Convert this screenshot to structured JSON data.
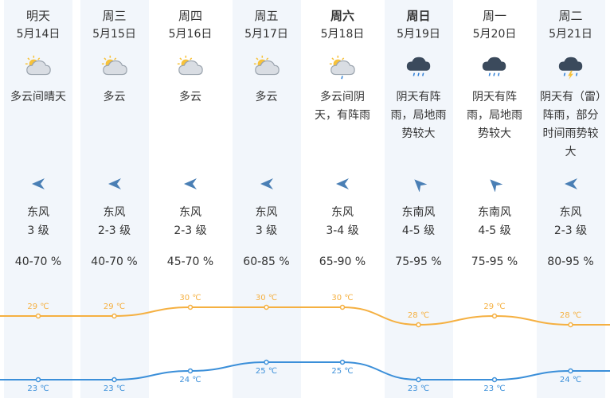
{
  "days": [
    {
      "dow": "明天",
      "date": "5月14日",
      "weekend": false,
      "icon": "partly-cloudy-icon",
      "weather": "多云间晴天",
      "wind_dir": "东风",
      "wind_level": "3 级",
      "wind_arrow": "arrow-west-icon",
      "humidity": "40-70 %",
      "high": "29 ℃",
      "low": "23 ℃",
      "high_val": 29,
      "low_val": 23
    },
    {
      "dow": "周三",
      "date": "5月15日",
      "weekend": false,
      "icon": "partly-cloudy-icon",
      "weather": "多云",
      "wind_dir": "东风",
      "wind_level": "2-3 级",
      "wind_arrow": "arrow-west-icon",
      "humidity": "40-70 %",
      "high": "29 ℃",
      "low": "23 ℃",
      "high_val": 29,
      "low_val": 23
    },
    {
      "dow": "周四",
      "date": "5月16日",
      "weekend": false,
      "icon": "partly-cloudy-icon",
      "weather": "多云",
      "wind_dir": "东风",
      "wind_level": "2-3 级",
      "wind_arrow": "arrow-west-icon",
      "humidity": "45-70 %",
      "high": "30 ℃",
      "low": "24 ℃",
      "high_val": 30,
      "low_val": 24
    },
    {
      "dow": "周五",
      "date": "5月17日",
      "weekend": false,
      "icon": "partly-cloudy-icon",
      "weather": "多云",
      "wind_dir": "东风",
      "wind_level": "3 级",
      "wind_arrow": "arrow-west-icon",
      "humidity": "60-85 %",
      "high": "30 ℃",
      "low": "25 ℃",
      "high_val": 30,
      "low_val": 25
    },
    {
      "dow": "周六",
      "date": "5月18日",
      "weekend": true,
      "icon": "cloudy-sun-rain-icon",
      "weather": "多云间阴天，有阵雨",
      "wind_dir": "东风",
      "wind_level": "3-4 级",
      "wind_arrow": "arrow-west-icon",
      "humidity": "65-90 %",
      "high": "30 ℃",
      "low": "25 ℃",
      "high_val": 30,
      "low_val": 25
    },
    {
      "dow": "周日",
      "date": "5月19日",
      "weekend": true,
      "icon": "rain-cloud-icon",
      "weather": "阴天有阵雨，局地雨势较大",
      "wind_dir": "东南风",
      "wind_level": "4-5 级",
      "wind_arrow": "arrow-northwest-icon",
      "humidity": "75-95 %",
      "high": "28 ℃",
      "low": "23 ℃",
      "high_val": 28,
      "low_val": 23
    },
    {
      "dow": "周一",
      "date": "5月20日",
      "weekend": false,
      "icon": "rain-cloud-icon",
      "weather": "阴天有阵雨，局地雨势较大",
      "wind_dir": "东南风",
      "wind_level": "4-5 级",
      "wind_arrow": "arrow-northwest-icon",
      "humidity": "75-95 %",
      "high": "29 ℃",
      "low": "23 ℃",
      "high_val": 29,
      "low_val": 23
    },
    {
      "dow": "周二",
      "date": "5月21日",
      "weekend": false,
      "icon": "thunder-rain-icon",
      "weather": "阴天有（雷）阵雨，部分时间雨势较大",
      "wind_dir": "东风",
      "wind_level": "2-3 级",
      "wind_arrow": "arrow-west-icon",
      "humidity": "80-95 %",
      "high": "28 ℃",
      "low": "24 ℃",
      "high_val": 28,
      "low_val": 24
    }
  ],
  "colors": {
    "high_line": "#f5b041",
    "low_line": "#3b8fd9",
    "weekend_shade": "#f2f6fb",
    "text": "#333333"
  }
}
